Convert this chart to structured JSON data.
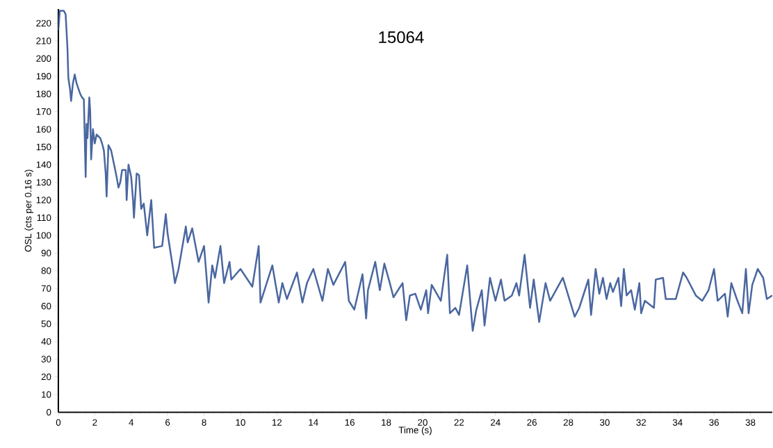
{
  "chart_data": {
    "type": "line",
    "title": "15064",
    "xlabel": "Time (s)",
    "ylabel": "OSL (cts per 0.16 s)",
    "x": [
      0,
      0.08,
      0.3,
      0.4,
      0.5,
      0.55,
      0.65,
      0.7,
      0.8,
      0.9,
      1.0,
      1.1,
      1.2,
      1.3,
      1.4,
      1.45,
      1.5,
      1.55,
      1.6,
      1.7,
      1.75,
      1.8,
      1.9,
      2.0,
      2.1,
      2.3,
      2.4,
      2.5,
      2.6,
      2.65,
      2.75,
      2.9,
      3.0,
      3.1,
      3.2,
      3.3,
      3.4,
      3.5,
      3.7,
      3.75,
      3.85,
      4.0,
      4.1,
      4.15,
      4.3,
      4.43,
      4.55,
      4.69,
      4.88,
      5.1,
      5.26,
      5.7,
      5.9,
      6.0,
      6.3,
      6.4,
      6.6,
      7.0,
      7.1,
      7.35,
      7.7,
      8.0,
      8.25,
      8.45,
      8.6,
      8.9,
      9.1,
      9.4,
      9.5,
      10.0,
      10.65,
      11.0,
      11.1,
      11.75,
      12.1,
      12.3,
      12.55,
      13.1,
      13.4,
      13.65,
      14.0,
      14.5,
      14.8,
      15.1,
      15.75,
      15.95,
      16.25,
      16.7,
      16.9,
      17.0,
      17.4,
      17.65,
      17.9,
      18.2,
      18.4,
      18.9,
      19.1,
      19.3,
      19.6,
      19.9,
      20.2,
      20.3,
      20.5,
      21.0,
      21.35,
      21.5,
      21.8,
      22.0,
      22.45,
      22.75,
      22.95,
      23.25,
      23.4,
      23.7,
      24.0,
      24.3,
      24.5,
      24.9,
      25.15,
      25.3,
      25.6,
      25.9,
      26.1,
      26.4,
      26.75,
      27.0,
      27.7,
      28.35,
      28.6,
      29.1,
      29.25,
      29.5,
      29.7,
      29.9,
      30.1,
      30.3,
      30.45,
      30.75,
      30.9,
      31.05,
      31.2,
      31.45,
      31.65,
      31.9,
      32.0,
      32.2,
      32.7,
      32.8,
      33.2,
      33.35,
      33.9,
      34.3,
      34.5,
      35.0,
      35.35,
      35.7,
      36.0,
      36.2,
      36.6,
      36.75,
      36.95,
      37.25,
      37.55,
      37.75,
      37.9,
      38.1,
      38.4,
      38.7,
      38.9,
      39.2
    ],
    "values": [
      216,
      227,
      227,
      225,
      206,
      189,
      182,
      176,
      186,
      191,
      186,
      183,
      180,
      178,
      177,
      155,
      133,
      163,
      155,
      178,
      170,
      143,
      160,
      152,
      157,
      155,
      152,
      148,
      135,
      122,
      151,
      148,
      143,
      138,
      133,
      127,
      130,
      137,
      137,
      120,
      140,
      133,
      120,
      110,
      135,
      134,
      115,
      118,
      100,
      120,
      93,
      94,
      112,
      101,
      81,
      73,
      81,
      105,
      96,
      104,
      85,
      94,
      62,
      83,
      76,
      94,
      73,
      85,
      75,
      81,
      71,
      94,
      62,
      83,
      62,
      73,
      64,
      79,
      62,
      73,
      81,
      63,
      81,
      72,
      85,
      63,
      58,
      78,
      53,
      69,
      85,
      69,
      84,
      73,
      65,
      73,
      52,
      66,
      67,
      58,
      69,
      56,
      72,
      63,
      89,
      56,
      59,
      55,
      83,
      46,
      58,
      69,
      49,
      76,
      63,
      75,
      63,
      66,
      73,
      66,
      89,
      59,
      75,
      51,
      73,
      63,
      76,
      54,
      59,
      75,
      55,
      81,
      67,
      76,
      64,
      73,
      68,
      76,
      60,
      81,
      66,
      69,
      58,
      73,
      56,
      63,
      59,
      75,
      76,
      64,
      64,
      79,
      76,
      66,
      63,
      69,
      81,
      63,
      67,
      54,
      73,
      64,
      56,
      81,
      56,
      72,
      81,
      76,
      64,
      66
    ],
    "color": "#4a67a0",
    "marker": "none",
    "line_style": "solid",
    "xlim": [
      0,
      39.2
    ],
    "ylim": [
      0,
      228
    ],
    "xticks": [
      0,
      2,
      4,
      6,
      8,
      10,
      12,
      14,
      16,
      18,
      20,
      22,
      24,
      26,
      28,
      30,
      32,
      34,
      36,
      38
    ],
    "yticks": [
      0,
      10,
      20,
      30,
      40,
      50,
      60,
      70,
      80,
      90,
      100,
      110,
      120,
      130,
      140,
      150,
      160,
      170,
      180,
      190,
      200,
      210,
      220
    ]
  }
}
